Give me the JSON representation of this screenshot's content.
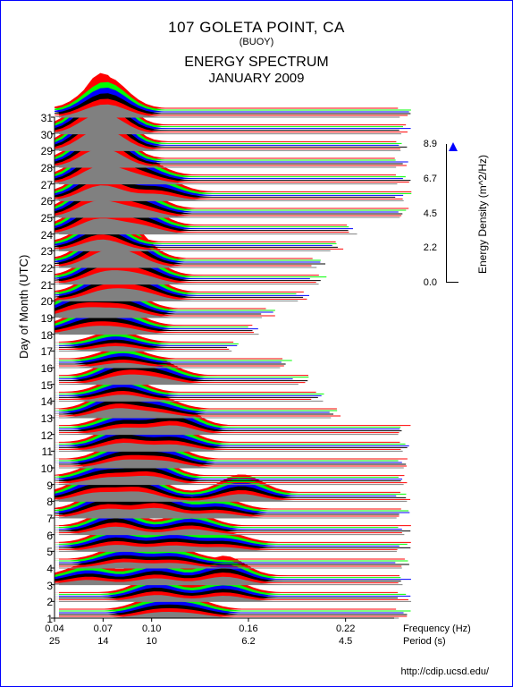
{
  "header": {
    "location": "107 GOLETA POINT, CA",
    "type": "(BUOY)",
    "chart_title": "ENERGY SPECTRUM",
    "date": "JANUARY 2009"
  },
  "y_axis": {
    "label": "Day of Month (UTC)",
    "ticks": [
      1,
      2,
      3,
      4,
      5,
      6,
      7,
      8,
      9,
      10,
      11,
      12,
      13,
      14,
      15,
      16,
      17,
      18,
      19,
      20,
      21,
      22,
      23,
      24,
      25,
      26,
      27,
      28,
      29,
      30,
      31
    ],
    "range": [
      1,
      31
    ]
  },
  "x_axis": {
    "freq_label": "Frequency (Hz)",
    "period_label": "Period (s)",
    "freq_ticks": [
      {
        "pos": 0.0,
        "label": "0.04"
      },
      {
        "pos": 0.143,
        "label": "0.07"
      },
      {
        "pos": 0.286,
        "label": "0.10"
      },
      {
        "pos": 0.571,
        "label": "0.16"
      },
      {
        "pos": 0.857,
        "label": "0.22"
      }
    ],
    "period_ticks": [
      {
        "pos": 0.0,
        "label": "25"
      },
      {
        "pos": 0.143,
        "label": "14"
      },
      {
        "pos": 0.286,
        "label": "10"
      },
      {
        "pos": 0.571,
        "label": "6.2"
      },
      {
        "pos": 0.857,
        "label": "4.5"
      }
    ]
  },
  "legend": {
    "label": "Energy Density (m^2/Hz)",
    "ticks": [
      {
        "pos": 0.0,
        "label": "8.9"
      },
      {
        "pos": 0.25,
        "label": "6.7"
      },
      {
        "pos": 0.5,
        "label": "4.5"
      },
      {
        "pos": 0.75,
        "label": "2.2"
      },
      {
        "pos": 1.0,
        "label": "0.0"
      }
    ]
  },
  "colors": {
    "cycle": [
      "#808080",
      "#ff0000",
      "#000000",
      "#0000ff",
      "#00ff00",
      "#ff0000"
    ],
    "border": "#0000ff",
    "background": "#ffffff",
    "text": "#000000"
  },
  "spectra_days": [
    {
      "day": 1,
      "peaks": [
        {
          "x": 0.3,
          "h": 0.3
        },
        {
          "x": 0.4,
          "h": 0.25
        }
      ],
      "ext": 1.0
    },
    {
      "day": 2,
      "peaks": [
        {
          "x": 0.3,
          "h": 0.4
        },
        {
          "x": 0.5,
          "h": 0.35
        }
      ],
      "ext": 1.0
    },
    {
      "day": 3,
      "peaks": [
        {
          "x": 0.1,
          "h": 0.3
        },
        {
          "x": 0.3,
          "h": 0.4
        },
        {
          "x": 0.5,
          "h": 0.5
        }
      ],
      "ext": 1.0
    },
    {
      "day": 4,
      "peaks": [
        {
          "x": 0.2,
          "h": 0.35
        },
        {
          "x": 0.35,
          "h": 0.3
        }
      ],
      "ext": 1.0
    },
    {
      "day": 5,
      "peaks": [
        {
          "x": 0.18,
          "h": 0.4
        },
        {
          "x": 0.35,
          "h": 0.35
        },
        {
          "x": 0.5,
          "h": 0.25
        }
      ],
      "ext": 1.0
    },
    {
      "day": 6,
      "peaks": [
        {
          "x": 0.18,
          "h": 0.5
        },
        {
          "x": 0.4,
          "h": 0.35
        }
      ],
      "ext": 1.0
    },
    {
      "day": 7,
      "peaks": [
        {
          "x": 0.15,
          "h": 0.55
        },
        {
          "x": 0.3,
          "h": 0.6
        },
        {
          "x": 0.48,
          "h": 0.3
        }
      ],
      "ext": 1.0
    },
    {
      "day": 8,
      "peaks": [
        {
          "x": 0.12,
          "h": 0.5
        },
        {
          "x": 0.25,
          "h": 0.55
        },
        {
          "x": 0.55,
          "h": 0.45
        }
      ],
      "ext": 1.0
    },
    {
      "day": 9,
      "peaks": [
        {
          "x": 0.15,
          "h": 0.4
        },
        {
          "x": 0.28,
          "h": 0.5
        }
      ],
      "ext": 1.0
    },
    {
      "day": 10,
      "peaks": [
        {
          "x": 0.2,
          "h": 0.45
        },
        {
          "x": 0.32,
          "h": 0.4
        }
      ],
      "ext": 1.0
    },
    {
      "day": 11,
      "peaks": [
        {
          "x": 0.2,
          "h": 0.5
        },
        {
          "x": 0.35,
          "h": 0.4
        }
      ],
      "ext": 1.0
    },
    {
      "day": 12,
      "peaks": [
        {
          "x": 0.2,
          "h": 0.4
        },
        {
          "x": 0.35,
          "h": 0.55
        }
      ],
      "ext": 1.0
    },
    {
      "day": 13,
      "peaks": [
        {
          "x": 0.18,
          "h": 0.55
        },
        {
          "x": 0.3,
          "h": 0.3
        }
      ],
      "ext": 0.8
    },
    {
      "day": 14,
      "peaks": [
        {
          "x": 0.2,
          "h": 0.4
        }
      ],
      "ext": 0.75
    },
    {
      "day": 15,
      "peaks": [
        {
          "x": 0.2,
          "h": 0.5
        },
        {
          "x": 0.3,
          "h": 0.35
        }
      ],
      "ext": 0.7
    },
    {
      "day": 16,
      "peaks": [
        {
          "x": 0.2,
          "h": 0.3
        }
      ],
      "ext": 0.65
    },
    {
      "day": 17,
      "peaks": [
        {
          "x": 0.18,
          "h": 0.3
        }
      ],
      "ext": 0.5
    },
    {
      "day": 18,
      "peaks": [
        {
          "x": 0.1,
          "h": 0.4
        },
        {
          "x": 0.2,
          "h": 0.35
        }
      ],
      "ext": 0.55
    },
    {
      "day": 19,
      "peaks": [
        {
          "x": 0.08,
          "h": 0.55
        },
        {
          "x": 0.2,
          "h": 0.5
        }
      ],
      "ext": 0.6
    },
    {
      "day": 20,
      "peaks": [
        {
          "x": 0.15,
          "h": 0.6
        },
        {
          "x": 0.25,
          "h": 0.5
        }
      ],
      "ext": 0.7
    },
    {
      "day": 21,
      "peaks": [
        {
          "x": 0.15,
          "h": 0.7
        },
        {
          "x": 0.25,
          "h": 0.5
        }
      ],
      "ext": 0.75
    },
    {
      "day": 22,
      "peaks": [
        {
          "x": 0.15,
          "h": 0.8
        },
        {
          "x": 0.22,
          "h": 0.6
        }
      ],
      "ext": 0.75
    },
    {
      "day": 23,
      "peaks": [
        {
          "x": 0.14,
          "h": 0.7
        }
      ],
      "ext": 0.8
    },
    {
      "day": 24,
      "peaks": [
        {
          "x": 0.13,
          "h": 0.9
        },
        {
          "x": 0.25,
          "h": 0.5
        }
      ],
      "ext": 0.85
    },
    {
      "day": 25,
      "peaks": [
        {
          "x": 0.13,
          "h": 1.0
        },
        {
          "x": 0.25,
          "h": 0.45
        }
      ],
      "ext": 1.0
    },
    {
      "day": 26,
      "peaks": [
        {
          "x": 0.14,
          "h": 0.95
        },
        {
          "x": 0.3,
          "h": 0.4
        }
      ],
      "ext": 1.0
    },
    {
      "day": 27,
      "peaks": [
        {
          "x": 0.14,
          "h": 1.1
        },
        {
          "x": 0.25,
          "h": 0.4
        }
      ],
      "ext": 1.0
    },
    {
      "day": 28,
      "peaks": [
        {
          "x": 0.14,
          "h": 1.2
        }
      ],
      "ext": 1.0
    },
    {
      "day": 29,
      "peaks": [
        {
          "x": 0.14,
          "h": 1.4
        }
      ],
      "ext": 1.0
    },
    {
      "day": 30,
      "peaks": [
        {
          "x": 0.14,
          "h": 1.3
        }
      ],
      "ext": 1.0
    },
    {
      "day": 31,
      "peaks": [
        {
          "x": 0.15,
          "h": 0.8
        }
      ],
      "ext": 1.0
    }
  ],
  "footer": "http://cdip.ucsd.edu/"
}
